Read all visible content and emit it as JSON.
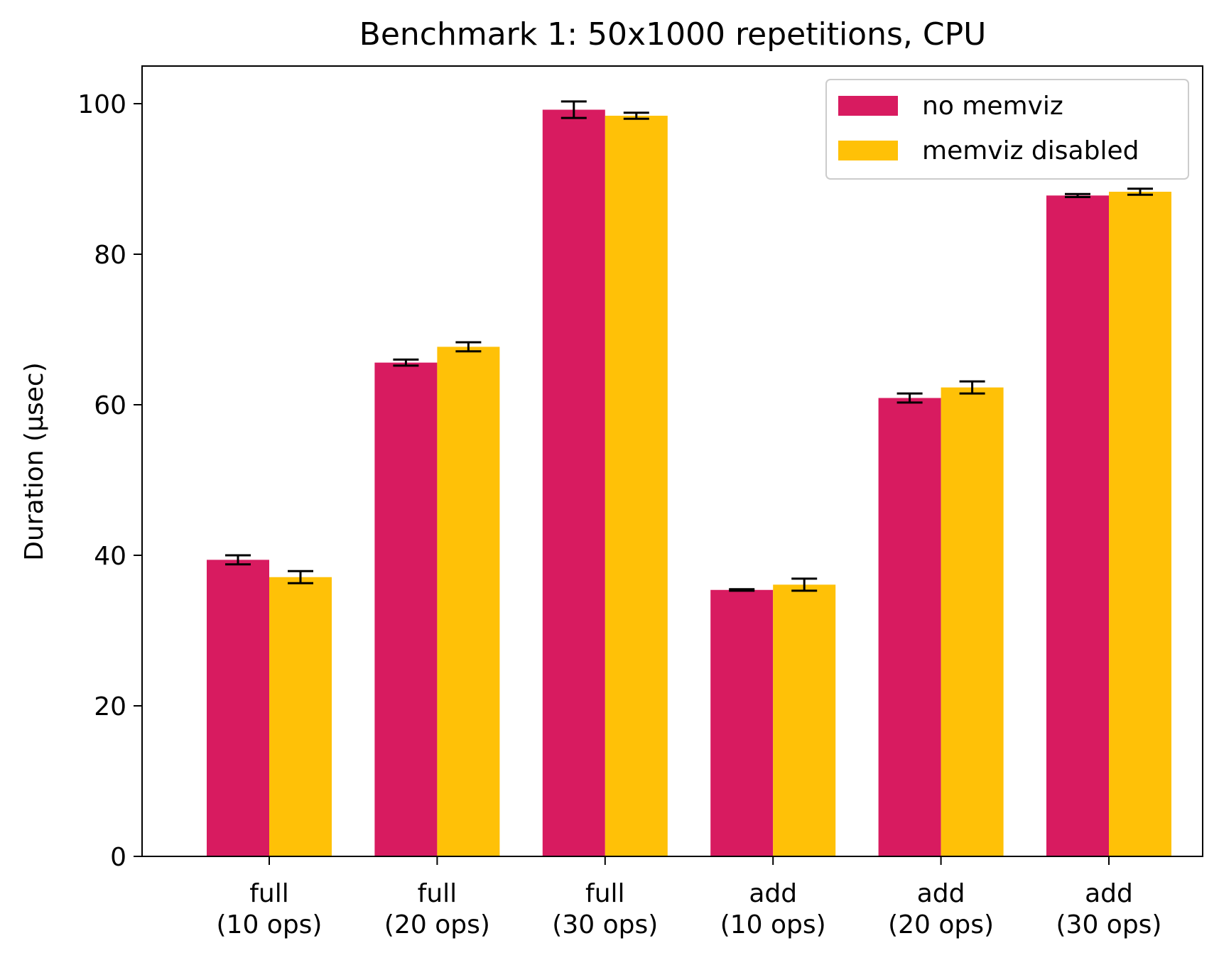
{
  "chart_data": {
    "type": "bar",
    "title": "Benchmark 1: 50x1000 repetitions, CPU",
    "xlabel": "",
    "ylabel": "Duration (µsec)",
    "ylim": [
      0,
      105
    ],
    "yticks": [
      0,
      20,
      40,
      60,
      80,
      100
    ],
    "categories": [
      [
        "full",
        "(10 ops)"
      ],
      [
        "full",
        "(20 ops)"
      ],
      [
        "full",
        "(30 ops)"
      ],
      [
        "add",
        "(10 ops)"
      ],
      [
        "add",
        "(20 ops)"
      ],
      [
        "add",
        "(30 ops)"
      ]
    ],
    "series": [
      {
        "name": "no memviz",
        "color": "#d81b60",
        "values": [
          39.4,
          65.6,
          99.2,
          35.4,
          60.9,
          87.8
        ],
        "errors": [
          0.6,
          0.4,
          1.1,
          0.1,
          0.6,
          0.2
        ]
      },
      {
        "name": "memviz disabled",
        "color": "#ffc107",
        "values": [
          37.1,
          67.7,
          98.4,
          36.1,
          62.3,
          88.3
        ],
        "errors": [
          0.8,
          0.6,
          0.4,
          0.8,
          0.8,
          0.4
        ]
      }
    ],
    "legend": "top-right",
    "grid": false
  }
}
